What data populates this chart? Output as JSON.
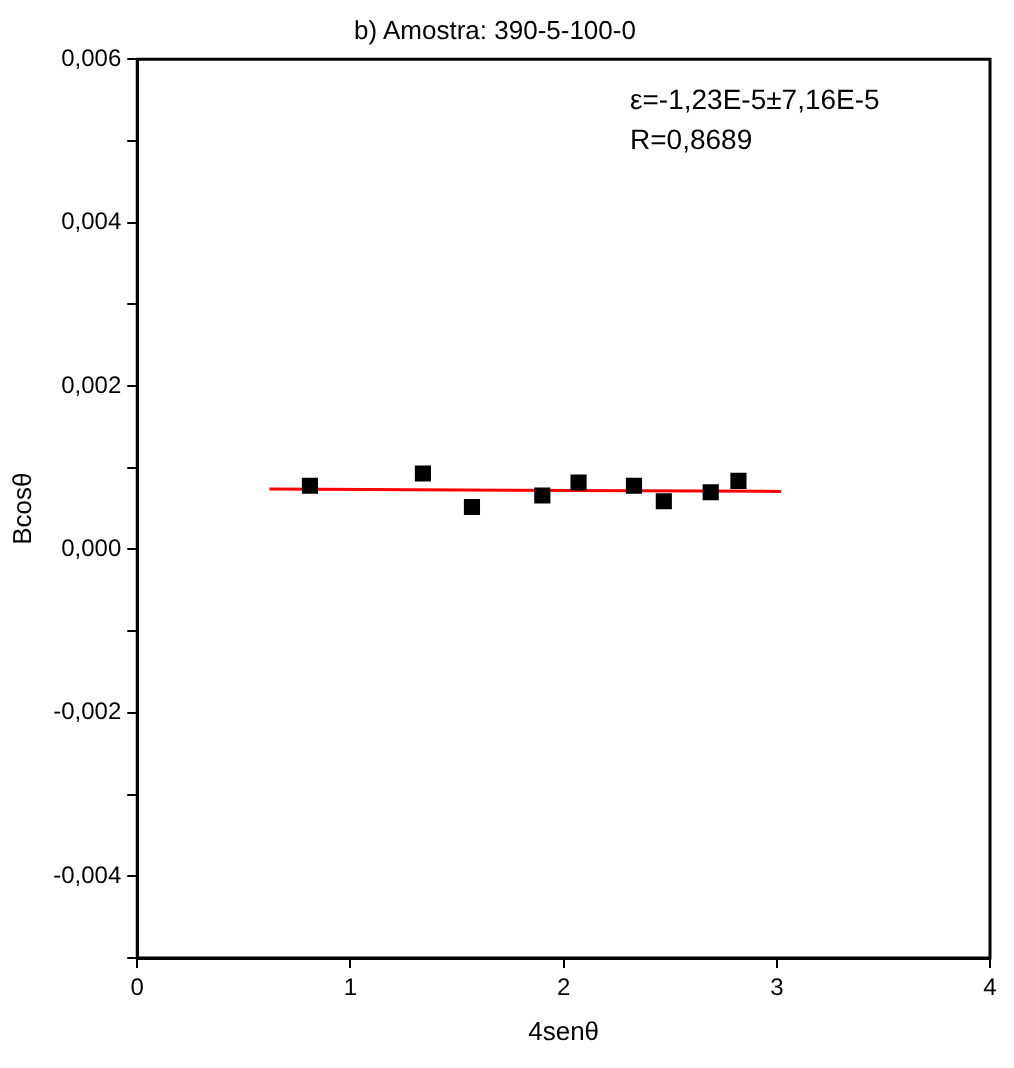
{
  "chart_data": {
    "type": "scatter",
    "title": "b) Amostra: 390-5-100-0",
    "xlabel": "4senθ",
    "ylabel": "Bcosθ",
    "annotations": [
      "ε=-1,23E-5±7,16E-5",
      "R=0,8689"
    ],
    "xlim": [
      0,
      4
    ],
    "xticks": [
      0,
      1,
      2,
      3,
      4
    ],
    "ylim": [
      -0.005,
      0.006
    ],
    "yticks": [
      {
        "value": -0.005,
        "label": null
      },
      {
        "value": -0.004,
        "label": "-0,004"
      },
      {
        "value": -0.003,
        "label": null
      },
      {
        "value": -0.002,
        "label": "-0,002"
      },
      {
        "value": -0.001,
        "label": null
      },
      {
        "value": 0,
        "label": "0,000"
      },
      {
        "value": 0.001,
        "label": null
      },
      {
        "value": 0.002,
        "label": "0,002"
      },
      {
        "value": 0.003,
        "label": null
      },
      {
        "value": 0.004,
        "label": "0,004"
      },
      {
        "value": 0.005,
        "label": null
      },
      {
        "value": 0.006,
        "label": "0,006"
      }
    ],
    "grid": false,
    "legend": false,
    "marker": "square",
    "series": [
      {
        "type": "scatter",
        "color": "#000000",
        "x": [
          0.81,
          1.34,
          1.57,
          1.9,
          2.07,
          2.33,
          2.47,
          2.69,
          2.82
        ],
        "values": [
          0.00078,
          0.00093,
          0.00052,
          0.00066,
          0.00082,
          0.00078,
          0.00059,
          0.0007,
          0.00084
        ]
      },
      {
        "type": "line",
        "color": "#ff0000",
        "marker": "none",
        "x": [
          0.62,
          3.02
        ],
        "values": [
          0.00074,
          0.00071
        ]
      }
    ]
  }
}
